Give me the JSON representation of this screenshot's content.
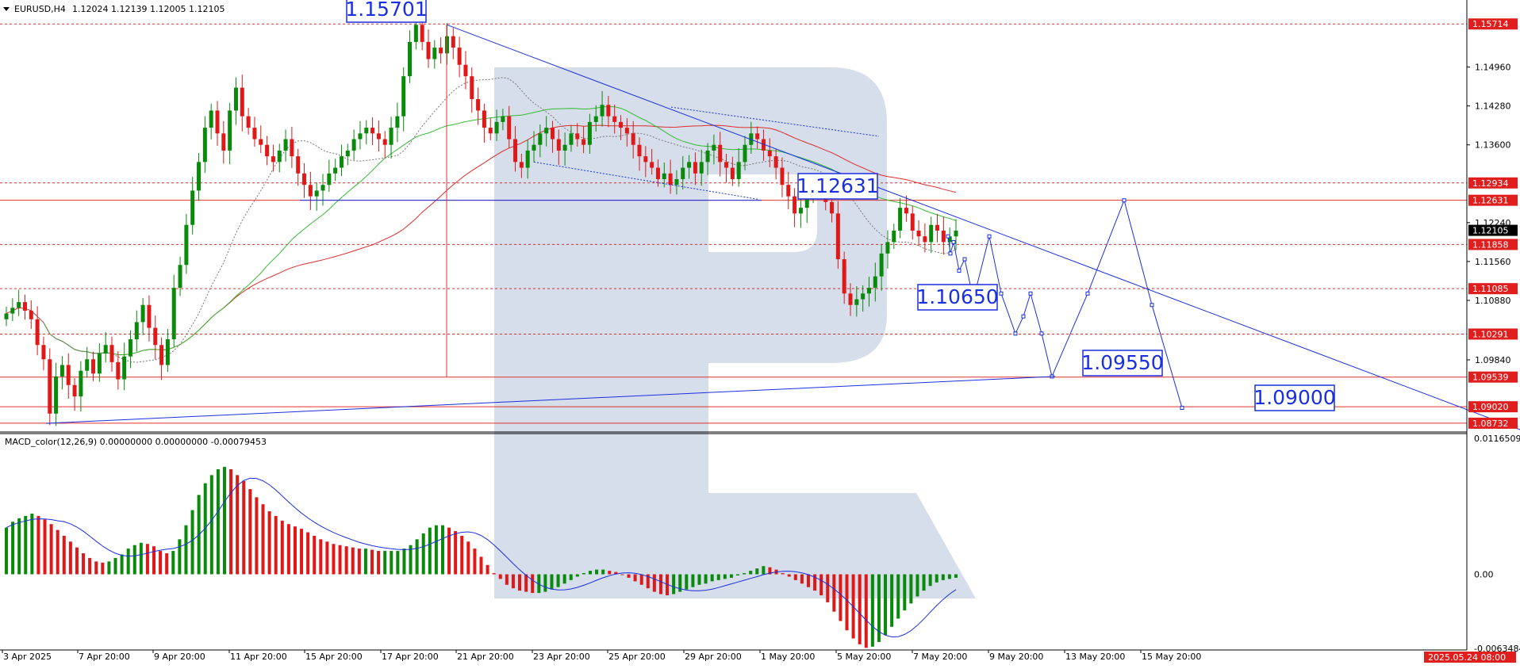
{
  "header": {
    "symbol": "EURUSD,H4",
    "ohlc": "1.12024 1.12139 1.12005 1.12105",
    "macd_label": "MACD_color(12,26,9) 0.00000000 0.00000000 -0.00079453"
  },
  "colors": {
    "bull": "#0a8a0a",
    "bear": "#e01818",
    "blue": "#1a2fe0",
    "watermark": "#d5deea",
    "level": "#e03030",
    "badge_red": "#e01e1e",
    "badge_black": "#000000"
  },
  "chart_data": [
    {
      "type": "line",
      "name": "price",
      "ylim": [
        1.0862,
        1.1605
      ],
      "x_ticks": [
        "3 Apr 2025",
        "7 Apr 20:00",
        "9 Apr 20:00",
        "11 Apr 20:00",
        "15 Apr 20:00",
        "17 Apr 20:00",
        "21 Apr 20:00",
        "23 Apr 20:00",
        "25 Apr 20:00",
        "29 Apr 20:00",
        "1 May 20:00",
        "5 May 20:00",
        "7 May 20:00",
        "9 May 20:00",
        "13 May 20:00",
        "15 May 20:00"
      ],
      "x_end_label": "2025.05.24 08:00",
      "y_ticks": [
        "1.14960",
        "1.14280",
        "1.13600",
        "1.12240",
        "1.11560",
        "1.10880",
        "1.09840"
      ],
      "levels": [
        {
          "label": "1.15714",
          "value": 1.15714,
          "style": "dashed"
        },
        {
          "label": "1.12934",
          "value": 1.12934,
          "style": "dashed"
        },
        {
          "label": "1.12631",
          "value": 1.12631,
          "style": "solid"
        },
        {
          "label": "1.11858",
          "value": 1.11858,
          "style": "dashed"
        },
        {
          "label": "1.11085",
          "value": 1.11085,
          "style": "dashed"
        },
        {
          "label": "1.10291",
          "value": 1.10291,
          "style": "dashed"
        },
        {
          "label": "1.09539",
          "value": 1.09539,
          "style": "solid"
        },
        {
          "label": "1.09020",
          "value": 1.0902,
          "style": "solid"
        },
        {
          "label": "1.08732",
          "value": 1.08732,
          "style": "solid"
        }
      ],
      "current": {
        "label": "1.12105",
        "value": 1.12105
      },
      "annotations": [
        {
          "text": "1.15701",
          "value": 1.15701
        },
        {
          "text": "1.12631",
          "value": 1.12631
        },
        {
          "text": "1.10650",
          "value": 1.1065
        },
        {
          "text": "1.09550",
          "value": 1.0955
        },
        {
          "text": "1.09000",
          "value": 1.09
        }
      ],
      "series": [
        {
          "values": [
            1.1065,
            1.1075,
            1.1085,
            1.107,
            1.1055,
            1.101,
            1.0985,
            1.089,
            1.0955,
            1.0975,
            1.094,
            1.092,
            1.0965,
            1.0985,
            1.096,
            1.0995,
            1.101,
            1.098,
            1.095,
            1.099,
            1.102,
            1.105,
            1.108,
            1.104,
            1.101,
            1.0975,
            1.102,
            1.111,
            1.115,
            1.122,
            1.128,
            1.133,
            1.139,
            1.142,
            1.138,
            1.135,
            1.142,
            1.146,
            1.141,
            1.139,
            1.137,
            1.136,
            1.134,
            1.133,
            1.135,
            1.137,
            1.134,
            1.131,
            1.129,
            1.127,
            1.128,
            1.129,
            1.131,
            1.132,
            1.134,
            1.135,
            1.137,
            1.138,
            1.139,
            1.138,
            1.137,
            1.136,
            1.139,
            1.141,
            1.148,
            1.154,
            1.157,
            1.154,
            1.151,
            1.153,
            1.152,
            1.155,
            1.153,
            1.15,
            1.148,
            1.144,
            1.142,
            1.139,
            1.138,
            1.14,
            1.141,
            1.137,
            1.133,
            1.132,
            1.135,
            1.136,
            1.138,
            1.139,
            1.137,
            1.135,
            1.136,
            1.138,
            1.137,
            1.136,
            1.14,
            1.141,
            1.143,
            1.141,
            1.14,
            1.139,
            1.138,
            1.136,
            1.134,
            1.133,
            1.132,
            1.13,
            1.131,
            1.129,
            1.13,
            1.132,
            1.133,
            1.131,
            1.133,
            1.135,
            1.136,
            1.133,
            1.132,
            1.13,
            1.133,
            1.136,
            1.138,
            1.137,
            1.135,
            1.134,
            1.132,
            1.129,
            1.127,
            1.124,
            1.125,
            1.127,
            1.129,
            1.128,
            1.126,
            1.124,
            1.116,
            1.11,
            1.108,
            1.109,
            1.11,
            1.111,
            1.113,
            1.117,
            1.119,
            1.121,
            1.125,
            1.124,
            1.121,
            1.12,
            1.119,
            1.122,
            1.121,
            1.119,
            1.12,
            1.121
          ]
        },
        {
          "name": "projection",
          "x": [
            1195,
            1198,
            1202,
            1209,
            1216,
            1227,
            1247,
            1262,
            1280,
            1290,
            1299,
            1313,
            1326,
            1371,
            1417,
            1452,
            1490
          ],
          "values": [
            1.12,
            1.117,
            1.119,
            1.114,
            1.116,
            1.109,
            1.12,
            1.11,
            1.103,
            1.106,
            1.11,
            1.103,
            1.0955,
            1.11,
            1.1263,
            1.108,
            1.09
          ]
        }
      ]
    },
    {
      "type": "bar",
      "name": "MACD",
      "ylim": [
        -0.00635,
        0.01165
      ],
      "y_ticks": [
        "0.01165090",
        "0.00",
        "-0.00634840"
      ],
      "values": [
        0.004,
        0.0045,
        0.0048,
        0.005,
        0.0052,
        0.005,
        0.0047,
        0.0043,
        0.0038,
        0.0033,
        0.0028,
        0.0023,
        0.0018,
        0.0014,
        0.0011,
        0.001,
        0.0011,
        0.0014,
        0.0017,
        0.0022,
        0.0025,
        0.0027,
        0.0026,
        0.0024,
        0.002,
        0.0018,
        0.002,
        0.003,
        0.0042,
        0.0055,
        0.0068,
        0.0078,
        0.0085,
        0.009,
        0.0092,
        0.009,
        0.0085,
        0.008,
        0.0073,
        0.0066,
        0.006,
        0.0054,
        0.005,
        0.0046,
        0.0043,
        0.0041,
        0.0039,
        0.0036,
        0.0033,
        0.003,
        0.0028,
        0.0026,
        0.0025,
        0.0024,
        0.0023,
        0.0022,
        0.0022,
        0.0021,
        0.002,
        0.002,
        0.002,
        0.002,
        0.0022,
        0.0025,
        0.003,
        0.0035,
        0.004,
        0.0042,
        0.0042,
        0.004,
        0.0037,
        0.0033,
        0.0028,
        0.0022,
        0.0015,
        0.0008,
        0.0001,
        -0.0004,
        -0.0009,
        -0.0012,
        -0.0014,
        -0.0015,
        -0.0016,
        -0.0016,
        -0.0015,
        -0.0013,
        -0.0011,
        -0.0008,
        -0.0005,
        -0.0002,
        0.0001,
        0.0003,
        0.0004,
        0.0004,
        0.0003,
        0.0002,
        0.0,
        -0.0003,
        -0.0006,
        -0.0009,
        -0.0012,
        -0.0015,
        -0.0017,
        -0.0018,
        -0.0017,
        -0.0015,
        -0.0013,
        -0.0011,
        -0.0009,
        -0.0008,
        -0.0006,
        -0.0005,
        -0.0004,
        -0.0003,
        -0.0001,
        0.0001,
        0.0003,
        0.0005,
        0.0007,
        0.0006,
        0.0004,
        0.0001,
        -0.0002,
        -0.0005,
        -0.0008,
        -0.0011,
        -0.0014,
        -0.0018,
        -0.0024,
        -0.0032,
        -0.004,
        -0.0048,
        -0.0055,
        -0.006,
        -0.0063,
        -0.0062,
        -0.0058,
        -0.0052,
        -0.0045,
        -0.0038,
        -0.0031,
        -0.0025,
        -0.0019,
        -0.0014,
        -0.001,
        -0.0007,
        -0.0005,
        -0.0004,
        -0.0003
      ]
    }
  ]
}
